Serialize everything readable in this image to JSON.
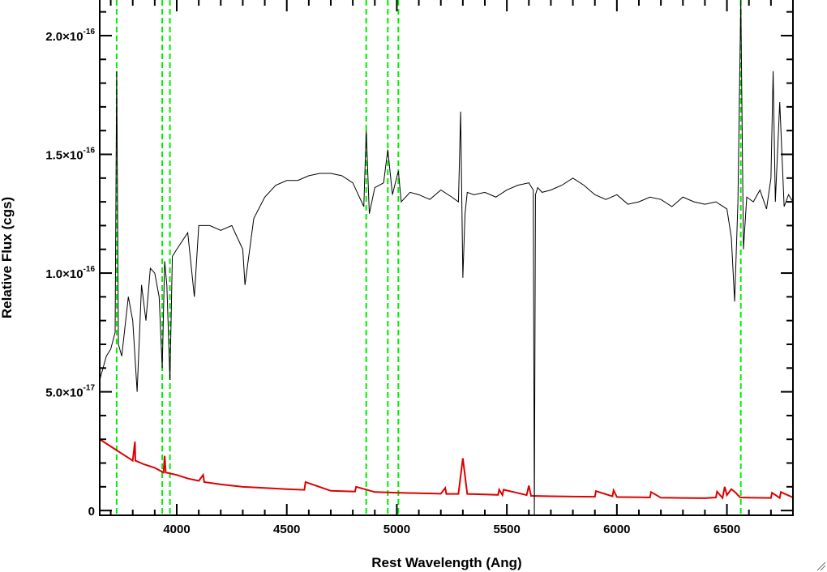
{
  "chart_data": {
    "type": "line",
    "title": "",
    "xlabel": "Rest Wavelength (Ang)",
    "ylabel": "Relative Flux (cgs)",
    "xlim": [
      3650,
      6800
    ],
    "ylim": [
      -2e-18,
      2.15e-16
    ],
    "x_ticks": [
      {
        "value": 4000,
        "label": "4000"
      },
      {
        "value": 4500,
        "label": "4500"
      },
      {
        "value": 5000,
        "label": "5000"
      },
      {
        "value": 5500,
        "label": "5500"
      },
      {
        "value": 6000,
        "label": "6000"
      },
      {
        "value": 6500,
        "label": "6500"
      }
    ],
    "y_ticks": [
      {
        "value": 0,
        "label": "0",
        "mantissa": "",
        "exponent": ""
      },
      {
        "value": 5e-17,
        "label": "5.0×10-17",
        "mantissa": "5.0×10",
        "exponent": "-17"
      },
      {
        "value": 1e-16,
        "label": "1.0×10-16",
        "mantissa": "1.0×10",
        "exponent": "-16"
      },
      {
        "value": 1.5e-16,
        "label": "1.5×10-16",
        "mantissa": "1.5×10",
        "exponent": "-16"
      },
      {
        "value": 2e-16,
        "label": "2.0×10-16",
        "mantissa": "2.0×10",
        "exponent": "-16"
      }
    ],
    "marker_lines": [
      3727,
      3934,
      3969,
      4861,
      4959,
      5007,
      6563
    ],
    "series": [
      {
        "color": "#000000",
        "x": [
          3650,
          3680,
          3700,
          3720,
          3727,
          3735,
          3750,
          3780,
          3800,
          3820,
          3840,
          3860,
          3880,
          3900,
          3920,
          3934,
          3945,
          3955,
          3969,
          3980,
          4000,
          4050,
          4080,
          4100,
          4150,
          4200,
          4250,
          4300,
          4310,
          4350,
          4400,
          4450,
          4500,
          4550,
          4600,
          4650,
          4700,
          4750,
          4800,
          4850,
          4861,
          4875,
          4900,
          4940,
          4959,
          4980,
          5007,
          5020,
          5060,
          5100,
          5150,
          5200,
          5250,
          5280,
          5290,
          5300,
          5310,
          5320,
          5350,
          5400,
          5450,
          5500,
          5550,
          5600,
          5620,
          5625,
          5630,
          5640,
          5660,
          5700,
          5750,
          5800,
          5850,
          5900,
          5950,
          6000,
          6050,
          6100,
          6150,
          6200,
          6250,
          6300,
          6350,
          6400,
          6450,
          6500,
          6520,
          6535,
          6550,
          6563,
          6575,
          6590,
          6620,
          6650,
          6680,
          6700,
          6710,
          6720,
          6740,
          6760,
          6780,
          6800
        ],
        "y": [
          5.5e-17,
          6.5e-17,
          6.8e-17,
          7.5e-17,
          1.85e-16,
          7e-17,
          6.5e-17,
          9e-17,
          8e-17,
          5e-17,
          9.5e-17,
          8e-17,
          1.02e-16,
          1e-16,
          9e-17,
          6e-17,
          1.05e-16,
          9.5e-17,
          5.5e-17,
          1.07e-16,
          1.1e-16,
          1.17e-16,
          9e-17,
          1.2e-16,
          1.2e-16,
          1.18e-16,
          1.2e-16,
          1.1e-16,
          9.5e-17,
          1.23e-16,
          1.32e-16,
          1.37e-16,
          1.39e-16,
          1.39e-16,
          1.41e-16,
          1.42e-16,
          1.42e-16,
          1.41e-16,
          1.38e-16,
          1.28e-16,
          1.6e-16,
          1.25e-16,
          1.36e-16,
          1.38e-16,
          1.52e-16,
          1.33e-16,
          1.43e-16,
          1.3e-16,
          1.34e-16,
          1.33e-16,
          1.31e-16,
          1.35e-16,
          1.32e-16,
          1.3e-16,
          1.68e-16,
          9.8e-17,
          1.25e-16,
          1.34e-16,
          1.33e-16,
          1.34e-16,
          1.32e-16,
          1.35e-16,
          1.37e-16,
          1.38e-16,
          1.35e-16,
          -3e-18,
          1.33e-16,
          1.36e-16,
          1.34e-16,
          1.35e-16,
          1.37e-16,
          1.4e-16,
          1.37e-16,
          1.33e-16,
          1.31e-16,
          1.33e-16,
          1.29e-16,
          1.3e-16,
          1.32e-16,
          1.31e-16,
          1.28e-16,
          1.32e-16,
          1.3e-16,
          1.29e-16,
          1.3e-16,
          1.27e-16,
          1.15e-16,
          8.8e-17,
          1.3e-16,
          2.15e-16,
          1.1e-16,
          1.32e-16,
          1.3e-16,
          1.35e-16,
          1.27e-16,
          1.4e-16,
          1.85e-16,
          1.3e-16,
          1.72e-16,
          1.28e-16,
          1.33e-16,
          1.3e-16
        ]
      },
      {
        "color": "#dd0000",
        "x": [
          3650,
          3700,
          3750,
          3800,
          3810,
          3812,
          3850,
          3900,
          3940,
          3945,
          3950,
          4000,
          4050,
          4100,
          4120,
          4125,
          4200,
          4300,
          4400,
          4500,
          4580,
          4585,
          4700,
          4810,
          4815,
          4900,
          5000,
          5100,
          5200,
          5220,
          5225,
          5280,
          5300,
          5320,
          5400,
          5460,
          5465,
          5480,
          5485,
          5590,
          5600,
          5610,
          5700,
          5800,
          5900,
          5905,
          5980,
          5985,
          6000,
          6100,
          6150,
          6155,
          6200,
          6300,
          6400,
          6450,
          6455,
          6480,
          6490,
          6500,
          6520,
          6540,
          6560,
          6600,
          6700,
          6705,
          6740,
          6745,
          6800
        ],
        "y": [
          3e-17,
          2.7e-17,
          2.4e-17,
          2.1e-17,
          2.9e-17,
          2.1e-17,
          1.95e-17,
          1.8e-17,
          1.6e-17,
          2.3e-17,
          1.6e-17,
          1.5e-17,
          1.35e-17,
          1.25e-17,
          1.5e-17,
          1.2e-17,
          1.1e-17,
          1e-17,
          9.5e-18,
          9e-18,
          8.7e-18,
          1.2e-17,
          8.3e-18,
          8e-18,
          1e-17,
          7.8e-18,
          7.5e-18,
          7.3e-18,
          7.1e-18,
          9.5e-18,
          7e-18,
          7e-18,
          2.2e-17,
          7e-18,
          6.8e-18,
          6.6e-18,
          8.8e-18,
          6.5e-18,
          8.8e-18,
          6.5e-18,
          1.05e-17,
          6.2e-18,
          6e-18,
          5.9e-18,
          5.8e-18,
          8.2e-18,
          6e-18,
          8.5e-18,
          5.7e-18,
          5.6e-18,
          5.5e-18,
          7.8e-18,
          5.4e-18,
          5.3e-18,
          5.2e-18,
          5.5e-18,
          8e-18,
          5.3e-18,
          1e-17,
          6.5e-18,
          9e-18,
          7.5e-18,
          5.5e-18,
          5.4e-18,
          5.3e-18,
          7.5e-18,
          5.3e-18,
          7.8e-18,
          5.5e-18
        ]
      }
    ]
  }
}
